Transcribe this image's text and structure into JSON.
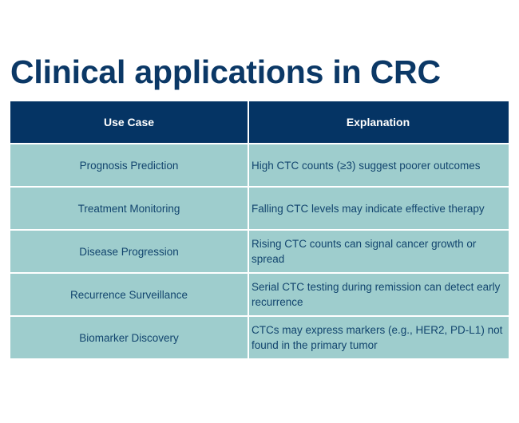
{
  "slide": {
    "title": "Clinical applications in CRC"
  },
  "table": {
    "headers": [
      "Use Case",
      "Explanation"
    ],
    "rows": [
      {
        "use_case": "Prognosis Prediction",
        "explanation": "High CTC counts (≥3) suggest poorer outcomes"
      },
      {
        "use_case": "Treatment Monitoring",
        "explanation": "Falling CTC levels may indicate effective therapy"
      },
      {
        "use_case": "Disease Progression",
        "explanation": "Rising CTC counts can signal cancer growth or spread"
      },
      {
        "use_case": "Recurrence Surveillance",
        "explanation": "Serial CTC testing during remission can detect early recurrence"
      },
      {
        "use_case": "Biomarker Discovery",
        "explanation": "CTCs may express markers (e.g., HER2, PD-L1) not found in the primary tumor"
      }
    ]
  },
  "colors": {
    "title": "#0b3866",
    "header_bg": "#053464",
    "header_text": "#ffffff",
    "row_bg": "#9ecdcd",
    "row_text": "#12456e"
  }
}
